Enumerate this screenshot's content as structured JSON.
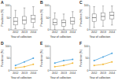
{
  "chart_data": [
    {
      "type": "box",
      "title": "A",
      "x_label": "Year of collection",
      "y_label": "Prevalence (%)",
      "categories": [
        "2012",
        "2013",
        "2014"
      ],
      "color": "#555555",
      "ylim": [
        0,
        100
      ],
      "yticks": [
        0,
        50,
        100
      ],
      "min": [
        5,
        5,
        10
      ],
      "q1": [
        20,
        25,
        30
      ],
      "median": [
        35,
        40,
        45
      ],
      "q3": [
        50,
        55,
        60
      ],
      "max": [
        80,
        90,
        95
      ]
    },
    {
      "type": "box",
      "title": "B",
      "x_label": "Year of collection",
      "y_label": "Prevalence (%)",
      "categories": [
        "2012",
        "2013",
        "2014"
      ],
      "color": "#555555",
      "ylim": [
        0,
        100
      ],
      "yticks": [
        0,
        50,
        100
      ],
      "min": [
        0,
        0,
        5
      ],
      "q1": [
        20,
        15,
        25
      ],
      "median": [
        30,
        30,
        35
      ],
      "q3": [
        45,
        40,
        50
      ],
      "max": [
        70,
        65,
        75
      ]
    },
    {
      "type": "box",
      "title": "C",
      "x_label": "Year of collection",
      "y_label": "Prevalence (%)",
      "categories": [
        "2012",
        "2013",
        "2014"
      ],
      "color": "#555555",
      "ylim": [
        0,
        100
      ],
      "yticks": [
        0,
        50,
        100
      ],
      "min": [
        10,
        15,
        20
      ],
      "q1": [
        35,
        40,
        45
      ],
      "median": [
        50,
        55,
        60
      ],
      "q3": [
        65,
        70,
        72
      ],
      "max": [
        95,
        100,
        98
      ]
    },
    {
      "type": "line",
      "title": "D",
      "x_label": "Year of collection",
      "y_label": "Prevalence (%)",
      "categories": [
        "2012",
        "2013",
        "2014"
      ],
      "ylim": [
        0,
        100
      ],
      "yticks": [
        0,
        50,
        100
      ],
      "series": [
        {
          "color": "#4aa3df",
          "marker": "circle",
          "values": [
            20,
            35,
            50
          ]
        },
        {
          "color": "#f2b632",
          "marker": "circle",
          "values": [
            10,
            15,
            25
          ]
        }
      ]
    },
    {
      "type": "line",
      "title": "E",
      "x_label": "Year of collection",
      "y_label": "Prevalence (%)",
      "categories": [
        "2012",
        "2013",
        "2014"
      ],
      "ylim": [
        0,
        100
      ],
      "yticks": [
        0,
        50,
        100
      ],
      "series": [
        {
          "color": "#4aa3df",
          "marker": "circle",
          "values": [
            30,
            40,
            45
          ]
        },
        {
          "color": "#f2b632",
          "marker": "circle",
          "values": [
            15,
            20,
            30
          ]
        }
      ]
    },
    {
      "type": "line",
      "title": "F",
      "x_label": "Year of collection",
      "y_label": "Prevalence (%)",
      "categories": [
        "2012",
        "2013",
        "2014"
      ],
      "ylim": [
        0,
        100
      ],
      "yticks": [
        0,
        50,
        100
      ],
      "series": [
        {
          "color": "#4aa3df",
          "marker": "circle",
          "values": [
            40,
            55,
            70
          ]
        },
        {
          "color": "#f2b632",
          "marker": "circle",
          "values": [
            20,
            25,
            35
          ]
        }
      ]
    }
  ]
}
